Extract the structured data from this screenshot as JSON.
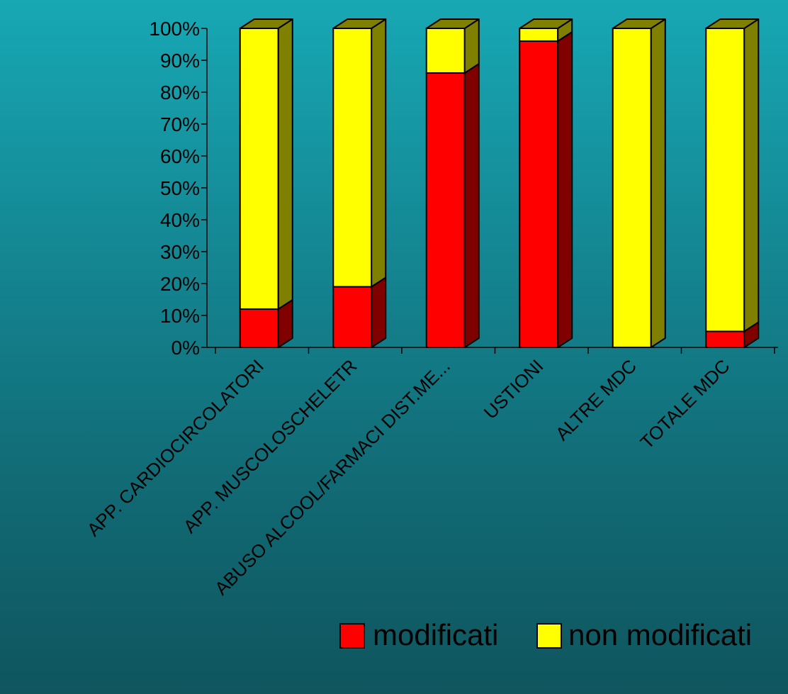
{
  "chart_data": {
    "type": "bar",
    "stacked": true,
    "percent_stacked": true,
    "three_d": true,
    "categories": [
      "APP. CARDIOCIRCOLATORIO",
      "APP. MUSCOLOSCHELETRICO",
      "ABUSO ALCOOL/FARMACI DIST.ME...",
      "USTIONI",
      "ALTRE MDC",
      "TOTALE MDC"
    ],
    "category_labels_visible": [
      "APP. CARDIOCIRCOLATORI",
      "APP. MUSCOLOSCHELETR",
      "ABUSO ALCOOL/FARMACI DIST.ME...",
      "USTIONI",
      "ALTRE MDC",
      "TOTALE MDC"
    ],
    "series": [
      {
        "name": "modificati",
        "color": "#ff0000",
        "side_color": "#800000",
        "values": [
          12,
          19,
          86,
          96,
          0,
          5
        ]
      },
      {
        "name": "non modificati",
        "color": "#ffff00",
        "side_color": "#808000",
        "values": [
          88,
          81,
          14,
          4,
          100,
          95
        ]
      }
    ],
    "y_ticks": [
      "0%",
      "10%",
      "20%",
      "30%",
      "40%",
      "50%",
      "60%",
      "70%",
      "80%",
      "90%",
      "100%"
    ],
    "ylim": [
      0,
      100
    ],
    "y_unit": "%",
    "title": "",
    "xlabel": "",
    "ylabel": "",
    "grid": false,
    "legend_position": "bottom-right"
  },
  "colors": {
    "background_top": "#17a8b4",
    "background_bottom": "#0f555e",
    "axis": "#000000"
  }
}
